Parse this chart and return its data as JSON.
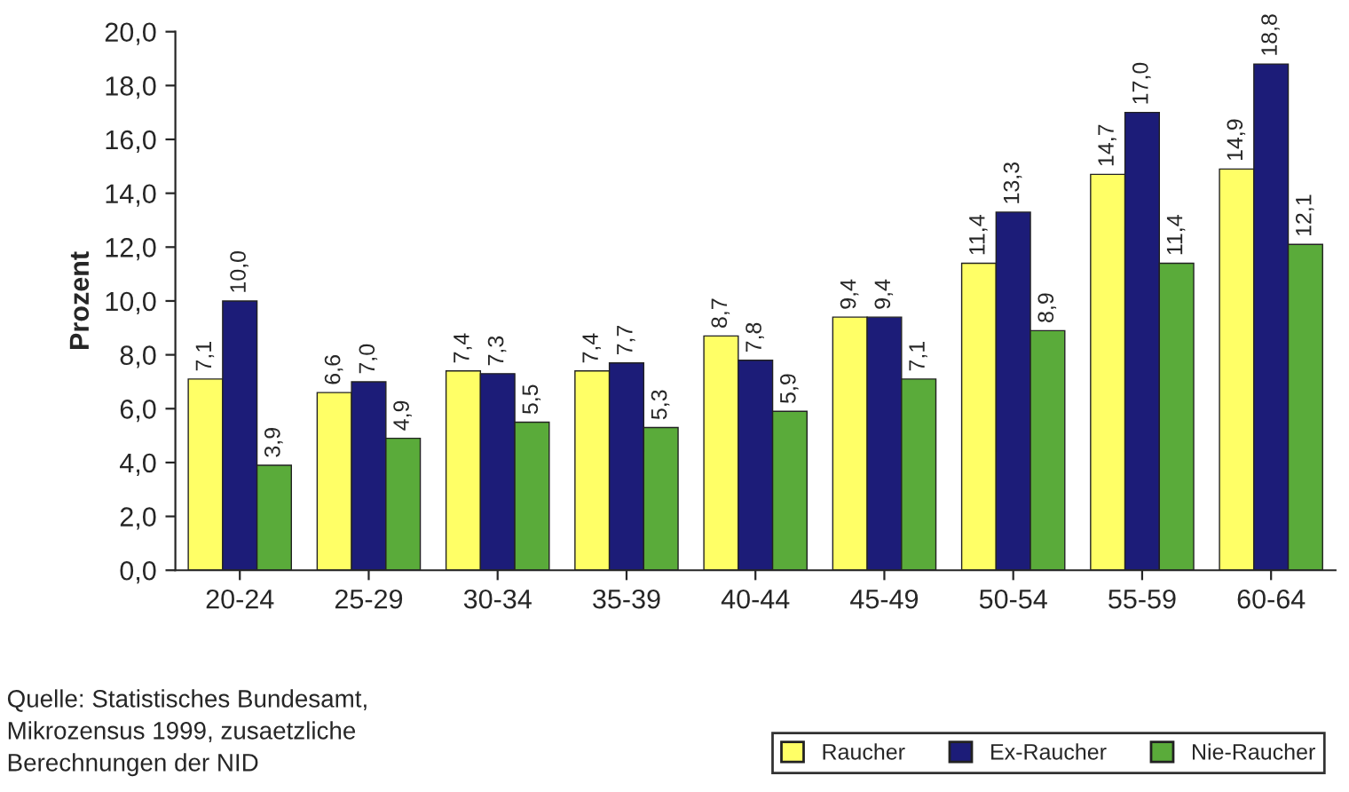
{
  "chart_data": {
    "type": "bar",
    "ylabel": "Prozent",
    "categories": [
      "20-24",
      "25-29",
      "30-34",
      "35-39",
      "40-44",
      "45-49",
      "50-54",
      "55-59",
      "60-64"
    ],
    "series": [
      {
        "name": "Raucher",
        "color": "#ffff66",
        "values": [
          7.1,
          6.6,
          7.4,
          7.4,
          8.7,
          9.4,
          11.4,
          14.7,
          14.9
        ],
        "value_labels": [
          "7,1",
          "6,6",
          "7,4",
          "7,4",
          "8,7",
          "9,4",
          "11,4",
          "14,7",
          "14,9"
        ]
      },
      {
        "name": "Ex-Raucher",
        "color": "#1c1c78",
        "values": [
          10.0,
          7.0,
          7.3,
          7.7,
          7.8,
          9.4,
          13.3,
          17.0,
          18.8
        ],
        "value_labels": [
          "10,0",
          "7,0",
          "7,3",
          "7,7",
          "7,8",
          "9,4",
          "13,3",
          "17,0",
          "18,8"
        ]
      },
      {
        "name": "Nie-Raucher",
        "color": "#5aab3a",
        "values": [
          3.9,
          4.9,
          5.5,
          5.3,
          5.9,
          7.1,
          8.9,
          11.4,
          12.1
        ],
        "value_labels": [
          "3,9",
          "4,9",
          "5,5",
          "5,3",
          "5,9",
          "7,1",
          "8,9",
          "11,4",
          "12,1"
        ]
      }
    ],
    "ylim": [
      0,
      20
    ],
    "yticks": [
      {
        "value": 0,
        "label": "0,0"
      },
      {
        "value": 2,
        "label": "2,0"
      },
      {
        "value": 4,
        "label": "4,0"
      },
      {
        "value": 6,
        "label": "6,0"
      },
      {
        "value": 8,
        "label": "8,0"
      },
      {
        "value": 10,
        "label": "10,0"
      },
      {
        "value": 12,
        "label": "12,0"
      },
      {
        "value": 14,
        "label": "14,0"
      },
      {
        "value": 16,
        "label": "16,0"
      },
      {
        "value": 18,
        "label": "18,0"
      },
      {
        "value": 20,
        "label": "20,0"
      }
    ],
    "grid": false,
    "legend": "bottom right",
    "annotations": [
      "Quelle: Statistisches Bundesamt,\nMikrozensus 1999, zusaetzliche\nBerechnungen der NID"
    ]
  }
}
